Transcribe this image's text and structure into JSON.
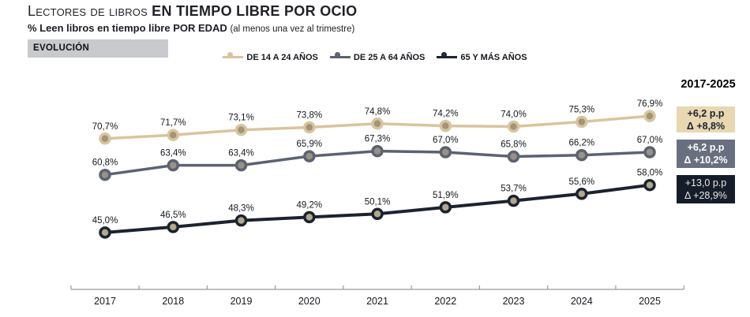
{
  "title": {
    "prefix": "Lectores de libros ",
    "bold": "EN TIEMPO LIBRE POR OCIO"
  },
  "subtitle": {
    "bold": "% Leen libros en tiempo libre POR EDAD ",
    "note": "(al menos una vez al trimestre)"
  },
  "evolution_label": "EVOLUCIÓN",
  "summary": {
    "period": "2017-2025",
    "badges": [
      {
        "series": "DE 14 A 24 AÑOS",
        "line1": "+6,2 p.p",
        "line2": "Δ +8,8%",
        "bg": "#E8D7B1",
        "fg": "#1B2230"
      },
      {
        "series": "DE 25 A 64 AÑOS",
        "line1": "+6,2 p.p",
        "line2": "Δ +10,2%",
        "bg": "#68707F",
        "fg": "#FFFFFF"
      },
      {
        "series": "65 Y MÁS AÑOS",
        "line1": "+13,0 p.p",
        "line2": "Δ +28,9%",
        "bg": "#151C2A",
        "fg": "#E9E7E1"
      }
    ]
  },
  "chart_data": {
    "type": "line",
    "title": "Lectores de libros en tiempo libre por ocio",
    "subtitle": "% Leen libros en tiempo libre por edad (al menos una vez al trimestre)",
    "x": [
      "2017",
      "2018",
      "2019",
      "2020",
      "2021",
      "2022",
      "2023",
      "2024",
      "2025"
    ],
    "series": [
      {
        "name": "DE 14 A 24 AÑOS",
        "color": "#D9C49C",
        "marker_fill": "#A2937A",
        "values": [
          70.7,
          71.7,
          73.1,
          73.8,
          74.8,
          74.2,
          74.0,
          75.3,
          76.9
        ],
        "labels": [
          "70,7%",
          "71,7%",
          "73,1%",
          "73,8%",
          "74,8%",
          "74,2%",
          "74,0%",
          "75,3%",
          "76,9%"
        ]
      },
      {
        "name": "DE 25 A 64 AÑOS",
        "color": "#5B6273",
        "marker_fill": "#9B9183",
        "values": [
          60.8,
          63.4,
          63.4,
          65.9,
          67.3,
          67.0,
          65.8,
          66.2,
          67.0
        ],
        "labels": [
          "60,8%",
          "63,4%",
          "63,4%",
          "65,9%",
          "67,3%",
          "67,0%",
          "65,8%",
          "66,2%",
          "67,0%"
        ]
      },
      {
        "name": "65 Y MÁS AÑOS",
        "color": "#1B2230",
        "marker_fill": "#B3A78D",
        "values": [
          45.0,
          46.5,
          48.3,
          49.2,
          50.1,
          51.9,
          53.7,
          55.6,
          58.0
        ],
        "labels": [
          "45,0%",
          "46,5%",
          "48,3%",
          "49,2%",
          "50,1%",
          "51,9%",
          "53,7%",
          "55,6%",
          "58,0%"
        ]
      }
    ],
    "ylim": [
      40,
      80
    ],
    "grid": false,
    "legend_position": "top",
    "axis_color": "#9A9A9A",
    "label_color": "#15181D"
  }
}
